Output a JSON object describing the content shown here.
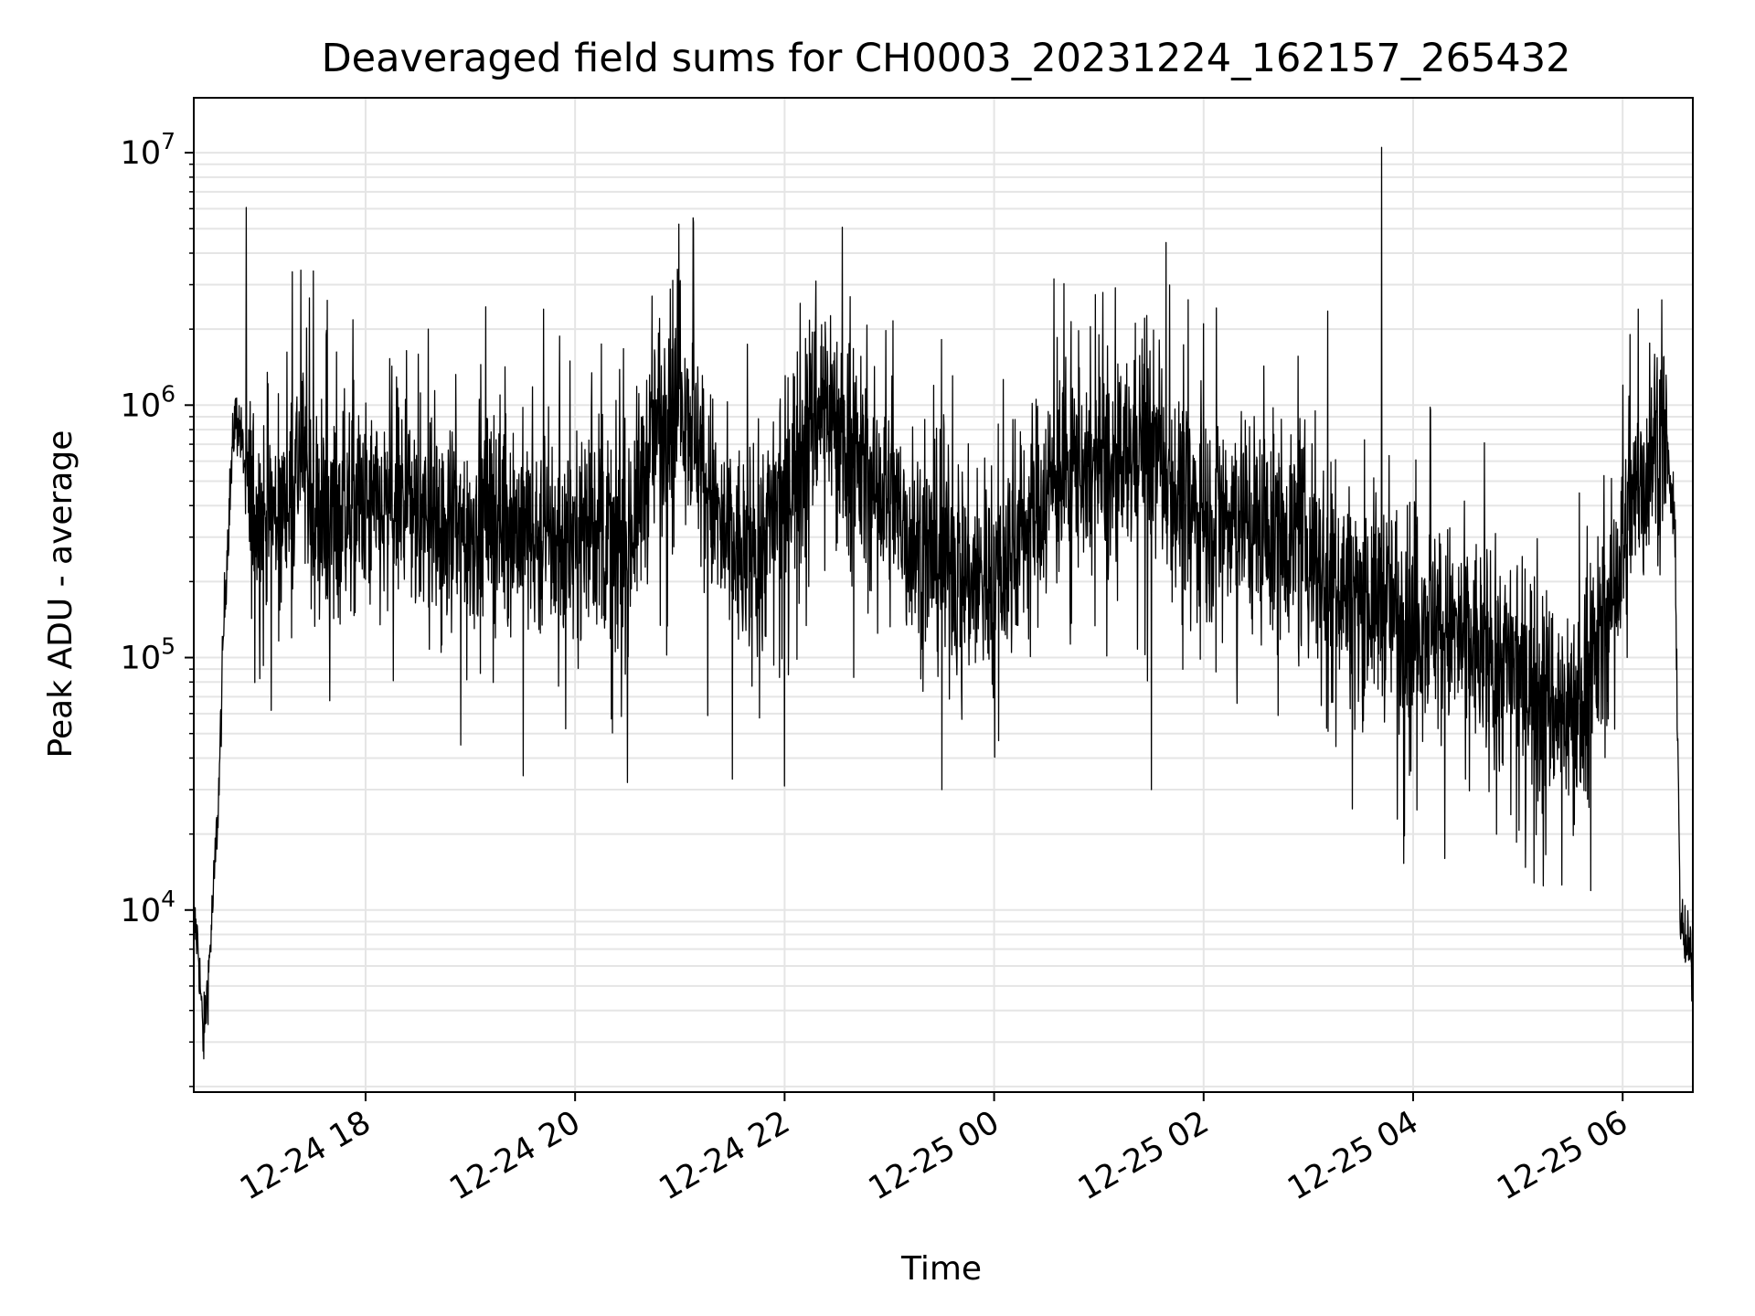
{
  "chart_data": {
    "type": "line",
    "title": "Deaveraged field sums for CH0003_20231224_162157_265432",
    "xlabel": "Time",
    "ylabel": "Peak ADU - average",
    "yscale": "log",
    "xlim_hours": [
      16.36,
      30.67
    ],
    "ylim": [
      1900,
      16500000
    ],
    "grid": true,
    "line_color": "#000000",
    "grid_color": "#e5e5e5",
    "x_ticks": [
      {
        "value": 18,
        "label": "12-24 18"
      },
      {
        "value": 20,
        "label": "12-24 20"
      },
      {
        "value": 22,
        "label": "12-24 22"
      },
      {
        "value": 24,
        "label": "12-25 00"
      },
      {
        "value": 26,
        "label": "12-25 02"
      },
      {
        "value": 28,
        "label": "12-25 04"
      },
      {
        "value": 30,
        "label": "12-25 06"
      }
    ],
    "y_ticks": [
      {
        "value": 10000,
        "base": "10",
        "exp": "4"
      },
      {
        "value": 100000,
        "base": "10",
        "exp": "5"
      },
      {
        "value": 1000000,
        "base": "10",
        "exp": "6"
      },
      {
        "value": 10000000,
        "base": "10",
        "exp": "7"
      }
    ],
    "series": [
      {
        "x_hours": [
          16.36,
          16.4,
          16.45,
          16.5,
          16.55,
          16.6,
          16.65,
          16.7,
          16.75,
          16.8,
          16.9,
          17.0,
          17.2,
          17.4,
          17.5,
          17.6,
          17.8,
          18.0,
          18.2,
          18.4,
          18.6,
          18.8,
          19.0,
          19.2,
          19.4,
          19.6,
          19.8,
          20.0,
          20.2,
          20.4,
          20.6,
          20.8,
          21.0,
          21.2,
          21.4,
          21.6,
          21.8,
          22.0,
          22.2,
          22.4,
          22.6,
          22.8,
          23.0,
          23.2,
          23.4,
          23.6,
          23.8,
          24.0,
          24.2,
          24.4,
          24.6,
          24.8,
          25.0,
          25.2,
          25.4,
          25.6,
          25.8,
          26.0,
          26.2,
          26.4,
          26.6,
          26.8,
          27.0,
          27.2,
          27.4,
          27.6,
          27.8,
          28.0,
          28.2,
          28.4,
          28.6,
          28.8,
          29.0,
          29.2,
          29.4,
          29.6,
          29.8,
          30.0,
          30.1,
          30.2,
          30.3,
          30.4,
          30.45,
          30.5,
          30.55,
          30.6,
          30.67
        ],
        "y": [
          9000,
          7500,
          3000,
          5500,
          12000,
          30000,
          150000,
          400000,
          900000,
          800000,
          400000,
          380000,
          350000,
          700000,
          380000,
          330000,
          400000,
          380000,
          350000,
          450000,
          320000,
          300000,
          330000,
          380000,
          350000,
          300000,
          280000,
          300000,
          350000,
          250000,
          400000,
          900000,
          1300000,
          600000,
          300000,
          250000,
          300000,
          450000,
          800000,
          1100000,
          700000,
          500000,
          400000,
          300000,
          250000,
          250000,
          200000,
          200000,
          280000,
          400000,
          500000,
          600000,
          550000,
          500000,
          800000,
          600000,
          400000,
          350000,
          400000,
          380000,
          300000,
          320000,
          280000,
          220000,
          180000,
          170000,
          160000,
          150000,
          140000,
          120000,
          110000,
          100000,
          90000,
          80000,
          60000,
          70000,
          120000,
          250000,
          380000,
          500000,
          750000,
          800000,
          500000,
          300000,
          9000,
          7000,
          6500
        ],
        "noise_decades": 0.38,
        "spikes": [
          {
            "x": 17.5,
            "y": 3400000
          },
          {
            "x": 21.0,
            "y": 2800000
          },
          {
            "x": 22.3,
            "y": 3100000
          },
          {
            "x": 27.7,
            "y": 10500000
          },
          {
            "x": 30.15,
            "y": 2400000
          },
          {
            "x": 18.6,
            "y": 2000000
          },
          {
            "x": 19.7,
            "y": 2400000
          },
          {
            "x": 25.0,
            "y": 1900000
          },
          {
            "x": 26.0,
            "y": 2100000
          },
          {
            "x": 28.5,
            "y": 33000
          },
          {
            "x": 29.6,
            "y": 32000
          },
          {
            "x": 23.5,
            "y": 30000
          },
          {
            "x": 25.5,
            "y": 30000
          },
          {
            "x": 22.0,
            "y": 31000
          },
          {
            "x": 21.5,
            "y": 33000
          },
          {
            "x": 20.5,
            "y": 32000
          }
        ]
      }
    ]
  }
}
